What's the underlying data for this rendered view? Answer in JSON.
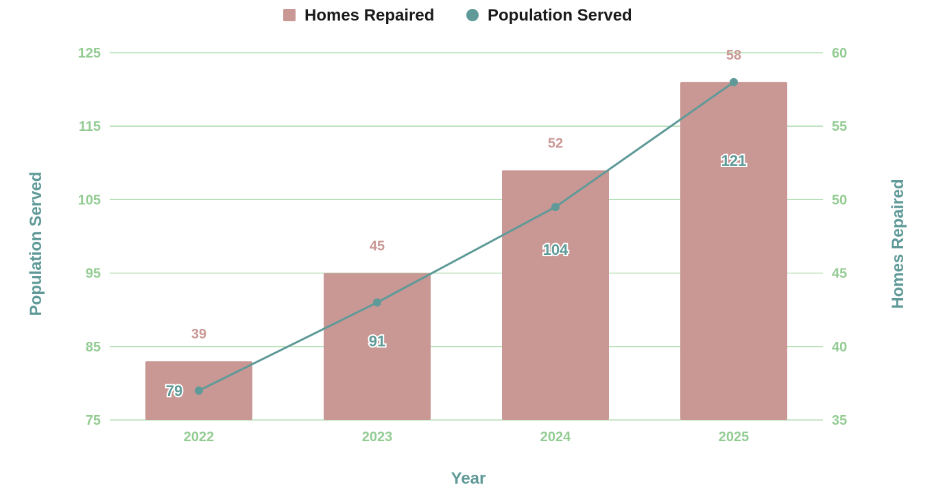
{
  "colors": {
    "bar": "#c99794",
    "line": "#5f9a98",
    "grid": "#a6d8a6",
    "tick": "#93cc93",
    "axis_title": "#5f9a98",
    "legend_text": "#1a1a1a"
  },
  "chart_data": {
    "type": "bar+line",
    "categories": [
      "2022",
      "2023",
      "2024",
      "2025"
    ],
    "series": [
      {
        "name": "Homes Repaired",
        "type": "bar",
        "axis": "right",
        "values": [
          39,
          45,
          52,
          58
        ]
      },
      {
        "name": "Population Served",
        "type": "line",
        "axis": "left",
        "values": [
          79,
          91,
          104,
          121
        ]
      }
    ],
    "xlabel": "Year",
    "ylabel_left": "Population Served",
    "ylabel_right": "Homes Repaired",
    "ylim_left": [
      75,
      125
    ],
    "ylim_right": [
      35,
      60
    ],
    "yticks_left": [
      "75",
      "85",
      "95",
      "105",
      "115",
      "125"
    ],
    "yticks_right": [
      "35",
      "40",
      "45",
      "50",
      "55",
      "60"
    ],
    "grid": true,
    "legend_placement": "top-center"
  }
}
